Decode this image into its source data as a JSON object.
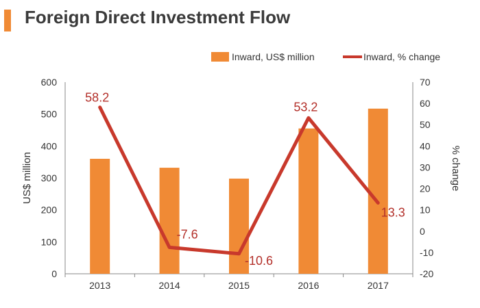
{
  "title": "Foreign Direct Investment Flow",
  "colors": {
    "bar": "#F08A35",
    "line": "#C8392C",
    "label": "#B3302A",
    "axis": "#888888",
    "text": "#333333"
  },
  "chart_data": {
    "type": "bar",
    "categories": [
      "2013",
      "2014",
      "2015",
      "2016",
      "2017"
    ],
    "series": [
      {
        "name": "Inward, US$ million",
        "type": "bar",
        "axis": "left",
        "values": [
          360,
          332,
          298,
          455,
          517
        ]
      },
      {
        "name": "Inward, % change",
        "type": "line",
        "axis": "right",
        "values": [
          58.2,
          -7.6,
          -10.6,
          53.2,
          13.3
        ],
        "data_labels": [
          "58.2",
          "-7.6",
          "-10.6",
          "53.2",
          "13.3"
        ]
      }
    ],
    "ylabel": "US$ million",
    "y2label": "% change",
    "ylim": [
      0,
      600
    ],
    "y2lim": [
      -20,
      70
    ],
    "yticks": [
      "0",
      "100",
      "200",
      "300",
      "400",
      "500",
      "600"
    ],
    "y2ticks": [
      "-20",
      "-10",
      "0",
      "10",
      "20",
      "30",
      "40",
      "50",
      "60",
      "70"
    ],
    "grid": false,
    "legend": "top-right"
  }
}
